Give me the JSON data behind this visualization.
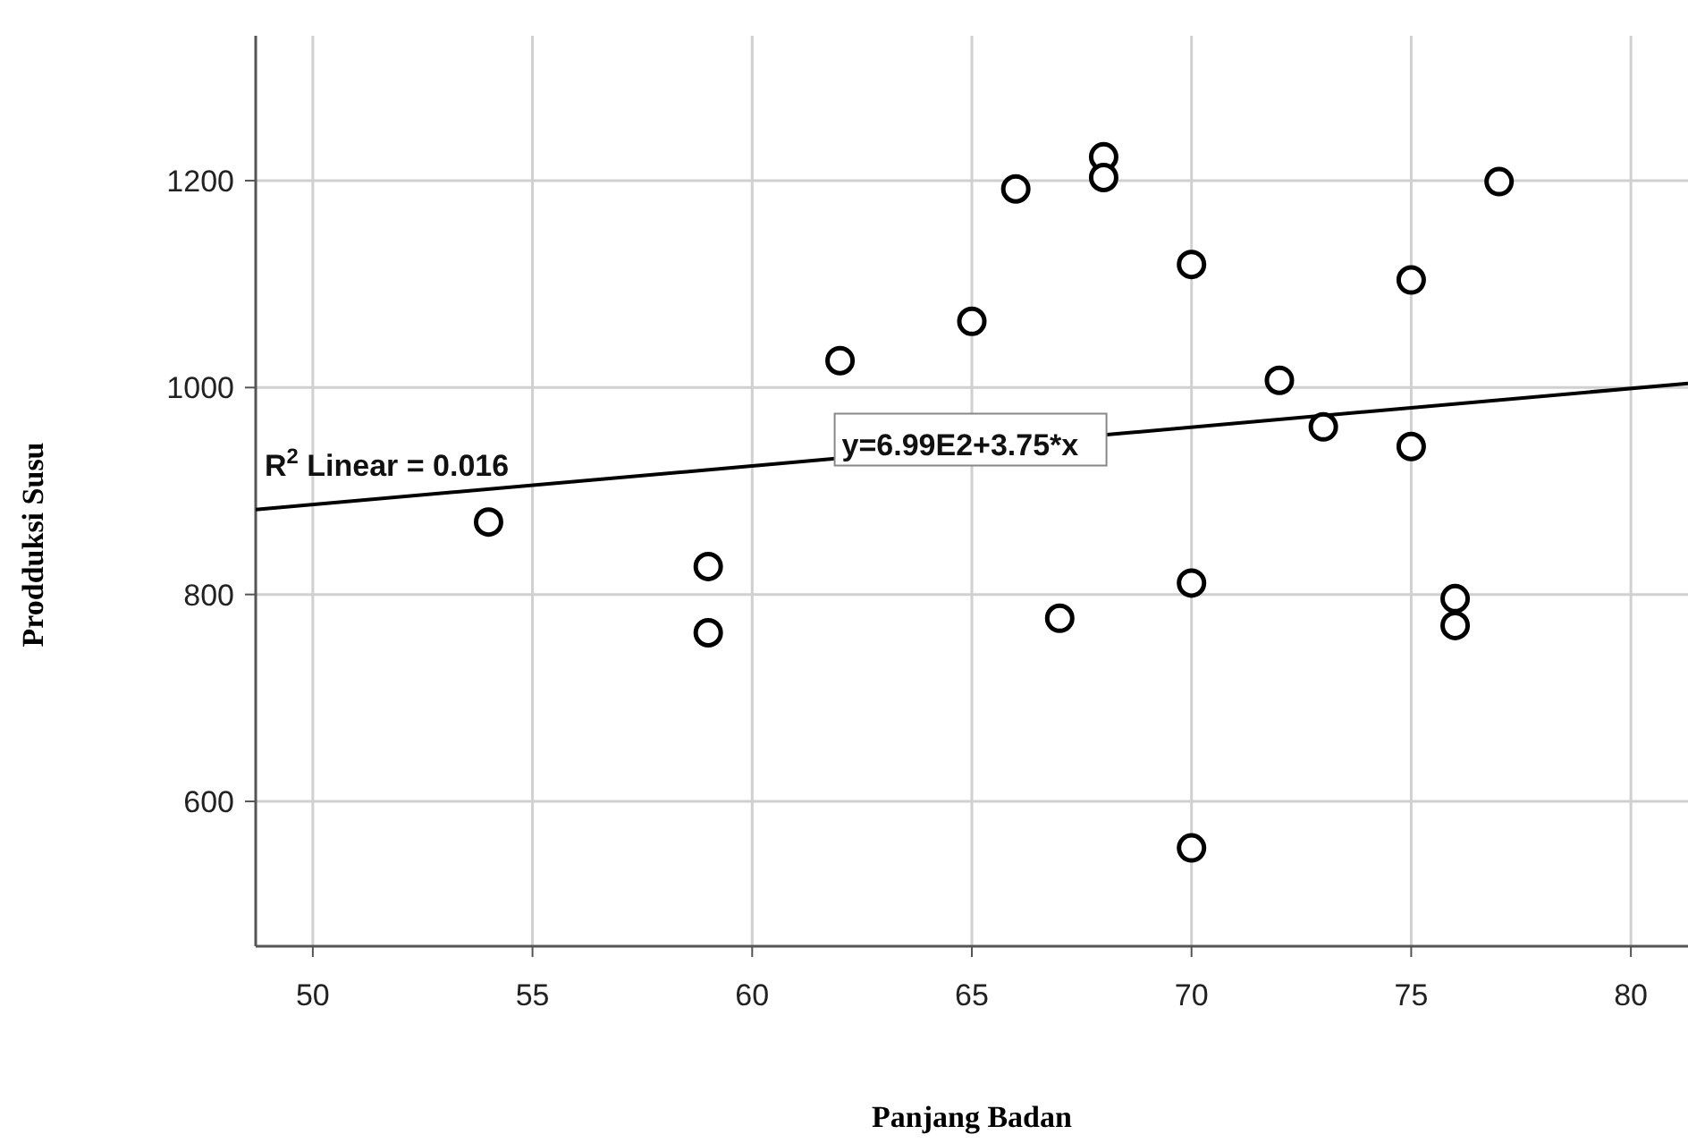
{
  "chart_data": {
    "type": "scatter",
    "xlabel": "Panjang Badan",
    "ylabel": "Prodduksi Susu",
    "xlim": [
      48.7,
      81.3
    ],
    "ylim": [
      460,
      1340
    ],
    "xticks": [
      50,
      55,
      60,
      65,
      70,
      75,
      80
    ],
    "yticks": [
      600,
      800,
      1000,
      1200
    ],
    "grid": true,
    "marker": "circle",
    "series": [
      {
        "color": "#000000",
        "x": [
          54,
          59,
          59,
          62,
          65,
          66,
          67,
          68,
          68,
          70,
          70,
          70,
          72,
          73,
          75,
          75,
          76,
          76,
          77
        ],
        "values": [
          870,
          827,
          763,
          1026,
          1064,
          1192,
          777,
          1223,
          1203,
          1119,
          811,
          555,
          1007,
          962,
          1104,
          943,
          796,
          770,
          1199
        ]
      },
      {
        "type": "line",
        "color": "#000000",
        "line_style": "solid",
        "marker": "none",
        "x": [
          48.7,
          81.3
        ],
        "values": [
          882,
          1004
        ]
      }
    ],
    "annotations": [
      "R$^{2}$ Linear = 0.016",
      {
        "text": "y=6.99E2+3.75*x",
        "x": 62,
        "y": 935
      }
    ]
  }
}
